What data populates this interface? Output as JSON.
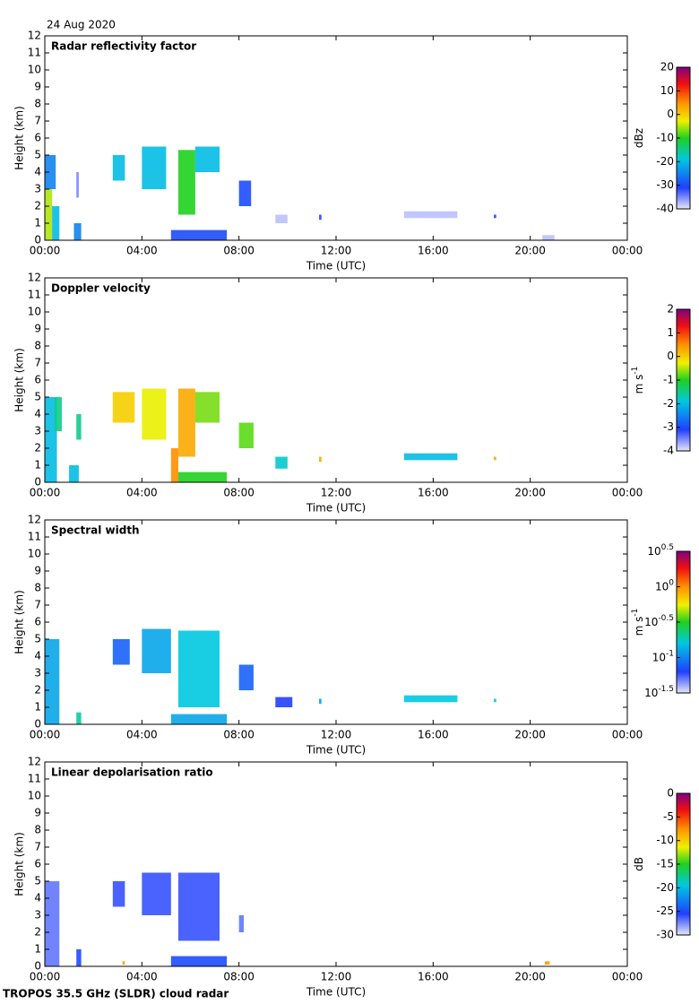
{
  "date": "24 Aug 2020",
  "footer": "TROPOS 35.5 GHz (SLDR) cloud radar",
  "chart_data": [
    {
      "type": "heatmap",
      "title": "Radar reflectivity factor",
      "xlabel": "Time (UTC)",
      "ylabel": "Height (km)",
      "xlim": [
        0,
        24
      ],
      "xticks": [
        {
          "value": 0,
          "label": "00:00"
        },
        {
          "value": 4,
          "label": "04:00"
        },
        {
          "value": 8,
          "label": "08:00"
        },
        {
          "value": 12,
          "label": "12:00"
        },
        {
          "value": 16,
          "label": "16:00"
        },
        {
          "value": 20,
          "label": "20:00"
        },
        {
          "value": 24,
          "label": "00:00"
        }
      ],
      "ylim": [
        0,
        12
      ],
      "yticks": [
        0,
        1,
        2,
        3,
        4,
        5,
        6,
        7,
        8,
        9,
        10,
        11,
        12
      ],
      "colorbar": {
        "label": "dBz",
        "lim": [
          -40,
          20
        ],
        "ticks": [
          -40,
          -30,
          -20,
          -10,
          0,
          10,
          20
        ]
      },
      "cells": [
        {
          "t": [
            0,
            0.3
          ],
          "z": [
            0,
            3
          ],
          "v": -5
        },
        {
          "t": [
            0,
            0.45
          ],
          "z": [
            3,
            5
          ],
          "v": -25
        },
        {
          "t": [
            0.3,
            0.6
          ],
          "z": [
            0,
            2
          ],
          "v": -20
        },
        {
          "t": [
            1.2,
            1.5
          ],
          "z": [
            0,
            1
          ],
          "v": -25
        },
        {
          "t": [
            1.3,
            1.4
          ],
          "z": [
            2.5,
            4
          ],
          "v": -35
        },
        {
          "t": [
            2.8,
            3.3
          ],
          "z": [
            3.5,
            5
          ],
          "v": -20
        },
        {
          "t": [
            4.0,
            5.0
          ],
          "z": [
            3,
            5.5
          ],
          "v": -20
        },
        {
          "t": [
            5.5,
            6.2
          ],
          "z": [
            1.5,
            5.3
          ],
          "v": -10
        },
        {
          "t": [
            6.2,
            7.2
          ],
          "z": [
            4,
            5.5
          ],
          "v": -20
        },
        {
          "t": [
            8.0,
            8.5
          ],
          "z": [
            2,
            3.5
          ],
          "v": -30
        },
        {
          "t": [
            5.2,
            7.5
          ],
          "z": [
            0,
            0.6
          ],
          "v": -30
        },
        {
          "t": [
            9.5,
            10.0
          ],
          "z": [
            1,
            1.5
          ],
          "v": -38
        },
        {
          "t": [
            11.3,
            11.4
          ],
          "z": [
            1.2,
            1.5
          ],
          "v": -30
        },
        {
          "t": [
            14.8,
            17.0
          ],
          "z": [
            1.3,
            1.7
          ],
          "v": -38
        },
        {
          "t": [
            18.5,
            18.6
          ],
          "z": [
            1.3,
            1.5
          ],
          "v": -30
        },
        {
          "t": [
            20.5,
            21.0
          ],
          "z": [
            0,
            0.3
          ],
          "v": -38
        }
      ]
    },
    {
      "type": "heatmap",
      "title": "Doppler velocity",
      "xlabel": "Time (UTC)",
      "ylabel": "Height (km)",
      "xlim": [
        0,
        24
      ],
      "xticks": [
        {
          "value": 0,
          "label": "00:00"
        },
        {
          "value": 4,
          "label": "04:00"
        },
        {
          "value": 8,
          "label": "08:00"
        },
        {
          "value": 12,
          "label": "12:00"
        },
        {
          "value": 16,
          "label": "16:00"
        },
        {
          "value": 20,
          "label": "20:00"
        },
        {
          "value": 24,
          "label": "00:00"
        }
      ],
      "ylim": [
        0,
        12
      ],
      "yticks": [
        0,
        1,
        2,
        3,
        4,
        5,
        6,
        7,
        8,
        9,
        10,
        11,
        12
      ],
      "colorbar": {
        "label": "m s",
        "label_sup": "-1",
        "lim": [
          -4,
          2
        ],
        "ticks": [
          -4,
          -3,
          -2,
          -1,
          0,
          1,
          2
        ]
      },
      "cells": [
        {
          "t": [
            0,
            0.5
          ],
          "z": [
            0,
            5
          ],
          "v": -2
        },
        {
          "t": [
            0.4,
            0.7
          ],
          "z": [
            3,
            5
          ],
          "v": -1.5
        },
        {
          "t": [
            1.3,
            1.5
          ],
          "z": [
            2.5,
            4
          ],
          "v": -1.5
        },
        {
          "t": [
            1.0,
            1.4
          ],
          "z": [
            0,
            1
          ],
          "v": -2
        },
        {
          "t": [
            2.8,
            3.7
          ],
          "z": [
            3.5,
            5.3
          ],
          "v": 0
        },
        {
          "t": [
            4.0,
            5.0
          ],
          "z": [
            2.5,
            5.5
          ],
          "v": -0.3
        },
        {
          "t": [
            5.5,
            6.2
          ],
          "z": [
            1.5,
            5.5
          ],
          "v": 0.3
        },
        {
          "t": [
            6.2,
            7.2
          ],
          "z": [
            3.5,
            5.3
          ],
          "v": -0.7
        },
        {
          "t": [
            5.2,
            5.5
          ],
          "z": [
            0,
            2
          ],
          "v": 0.5
        },
        {
          "t": [
            5.5,
            7.5
          ],
          "z": [
            0,
            0.6
          ],
          "v": -1
        },
        {
          "t": [
            8.0,
            8.6
          ],
          "z": [
            2,
            3.5
          ],
          "v": -0.8
        },
        {
          "t": [
            9.5,
            10.0
          ],
          "z": [
            0.8,
            1.5
          ],
          "v": -1.8
        },
        {
          "t": [
            11.3,
            11.4
          ],
          "z": [
            1.2,
            1.5
          ],
          "v": 0.3
        },
        {
          "t": [
            14.8,
            17.0
          ],
          "z": [
            1.3,
            1.7
          ],
          "v": -2
        },
        {
          "t": [
            18.5,
            18.6
          ],
          "z": [
            1.3,
            1.5
          ],
          "v": 0.3
        }
      ]
    },
    {
      "type": "heatmap",
      "title": "Spectral width",
      "xlabel": "Time (UTC)",
      "ylabel": "Height (km)",
      "xlim": [
        0,
        24
      ],
      "xticks": [
        {
          "value": 0,
          "label": "00:00"
        },
        {
          "value": 4,
          "label": "04:00"
        },
        {
          "value": 8,
          "label": "08:00"
        },
        {
          "value": 12,
          "label": "12:00"
        },
        {
          "value": 16,
          "label": "16:00"
        },
        {
          "value": 20,
          "label": "20:00"
        },
        {
          "value": 24,
          "label": "00:00"
        }
      ],
      "ylim": [
        0,
        12
      ],
      "yticks": [
        0,
        1,
        2,
        3,
        4,
        5,
        6,
        7,
        8,
        9,
        10,
        11,
        12
      ],
      "colorbar": {
        "label": "m s",
        "label_sup": "-1",
        "log_base": "10",
        "lim": [
          -1.5,
          0.5
        ],
        "ticks": [
          -1.5,
          -1,
          -0.5,
          0,
          0.5
        ]
      },
      "cells": [
        {
          "t": [
            0,
            0.6
          ],
          "z": [
            0,
            5
          ],
          "v": -0.9
        },
        {
          "t": [
            1.3,
            1.5
          ],
          "z": [
            0,
            0.7
          ],
          "v": -0.7
        },
        {
          "t": [
            2.8,
            3.5
          ],
          "z": [
            3.5,
            5
          ],
          "v": -1.1
        },
        {
          "t": [
            4.0,
            5.2
          ],
          "z": [
            3,
            5.6
          ],
          "v": -0.9
        },
        {
          "t": [
            5.5,
            7.2
          ],
          "z": [
            1,
            5.5
          ],
          "v": -0.8
        },
        {
          "t": [
            8.0,
            8.6
          ],
          "z": [
            2,
            3.5
          ],
          "v": -1.1
        },
        {
          "t": [
            5.2,
            7.5
          ],
          "z": [
            0,
            0.6
          ],
          "v": -0.9
        },
        {
          "t": [
            9.5,
            10.2
          ],
          "z": [
            1,
            1.6
          ],
          "v": -1.2
        },
        {
          "t": [
            11.3,
            11.4
          ],
          "z": [
            1.2,
            1.5
          ],
          "v": -0.9
        },
        {
          "t": [
            14.8,
            17.0
          ],
          "z": [
            1.3,
            1.7
          ],
          "v": -0.8
        },
        {
          "t": [
            18.5,
            18.6
          ],
          "z": [
            1.3,
            1.5
          ],
          "v": -0.8
        }
      ]
    },
    {
      "type": "heatmap",
      "title": "Linear depolarisation ratio",
      "xlabel": "Time (UTC)",
      "ylabel": "Height (km)",
      "xlim": [
        0,
        24
      ],
      "xticks": [
        {
          "value": 0,
          "label": "00:00"
        },
        {
          "value": 4,
          "label": "04:00"
        },
        {
          "value": 8,
          "label": "08:00"
        },
        {
          "value": 12,
          "label": "12:00"
        },
        {
          "value": 16,
          "label": "16:00"
        },
        {
          "value": 20,
          "label": "20:00"
        },
        {
          "value": 24,
          "label": "00:00"
        }
      ],
      "ylim": [
        0,
        12
      ],
      "yticks": [
        0,
        1,
        2,
        3,
        4,
        5,
        6,
        7,
        8,
        9,
        10,
        11,
        12
      ],
      "colorbar": {
        "label": "dB",
        "lim": [
          -30,
          0
        ],
        "ticks": [
          -30,
          -25,
          -20,
          -15,
          -10,
          -5,
          0
        ]
      },
      "cells": [
        {
          "t": [
            0,
            0.6
          ],
          "z": [
            0,
            5
          ],
          "v": -27
        },
        {
          "t": [
            1.3,
            1.5
          ],
          "z": [
            0,
            1
          ],
          "v": -25
        },
        {
          "t": [
            2.8,
            3.3
          ],
          "z": [
            3.5,
            5
          ],
          "v": -26
        },
        {
          "t": [
            4.0,
            5.2
          ],
          "z": [
            3,
            5.5
          ],
          "v": -26
        },
        {
          "t": [
            5.5,
            7.2
          ],
          "z": [
            1.5,
            5.5
          ],
          "v": -26
        },
        {
          "t": [
            5.2,
            7.5
          ],
          "z": [
            0,
            0.6
          ],
          "v": -25
        },
        {
          "t": [
            8.0,
            8.2
          ],
          "z": [
            2,
            3
          ],
          "v": -27
        },
        {
          "t": [
            3.2,
            3.3
          ],
          "z": [
            0.1,
            0.3
          ],
          "v": -8
        },
        {
          "t": [
            20.6,
            20.8
          ],
          "z": [
            0.1,
            0.3
          ],
          "v": -8
        }
      ]
    }
  ]
}
